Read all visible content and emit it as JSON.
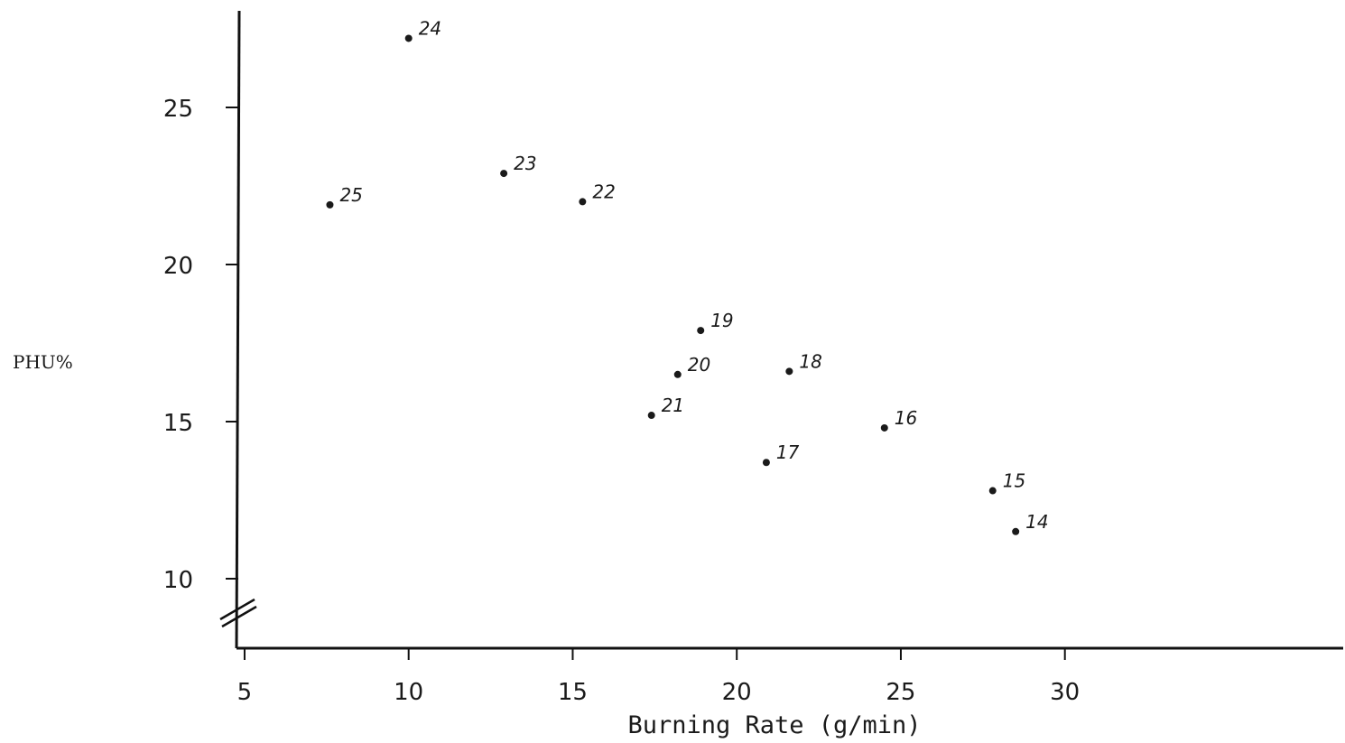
{
  "chart_data": {
    "type": "scatter",
    "title": "",
    "xlabel": "Burning Rate (g/min)",
    "ylabel": "PHU%",
    "xlim": [
      0,
      34
    ],
    "ylim": [
      8,
      28
    ],
    "x_ticks": [
      5,
      10,
      15,
      20,
      25,
      30
    ],
    "y_ticks": [
      10,
      15,
      20,
      25
    ],
    "grid": false,
    "legend": "none",
    "axis_break_y": true,
    "point_color": "#1a1a1a",
    "points": [
      {
        "label": "24",
        "x": 10.0,
        "y": 27.2
      },
      {
        "label": "25",
        "x": 7.6,
        "y": 21.9
      },
      {
        "label": "23",
        "x": 12.9,
        "y": 22.9
      },
      {
        "label": "22",
        "x": 15.3,
        "y": 22.0
      },
      {
        "label": "19",
        "x": 18.9,
        "y": 17.9
      },
      {
        "label": "20",
        "x": 18.2,
        "y": 16.5
      },
      {
        "label": "18",
        "x": 21.6,
        "y": 16.6
      },
      {
        "label": "21",
        "x": 17.4,
        "y": 15.2
      },
      {
        "label": "16",
        "x": 24.5,
        "y": 14.8
      },
      {
        "label": "17",
        "x": 20.9,
        "y": 13.7
      },
      {
        "label": "15",
        "x": 27.8,
        "y": 12.8
      },
      {
        "label": "14",
        "x": 28.5,
        "y": 11.5
      }
    ]
  }
}
